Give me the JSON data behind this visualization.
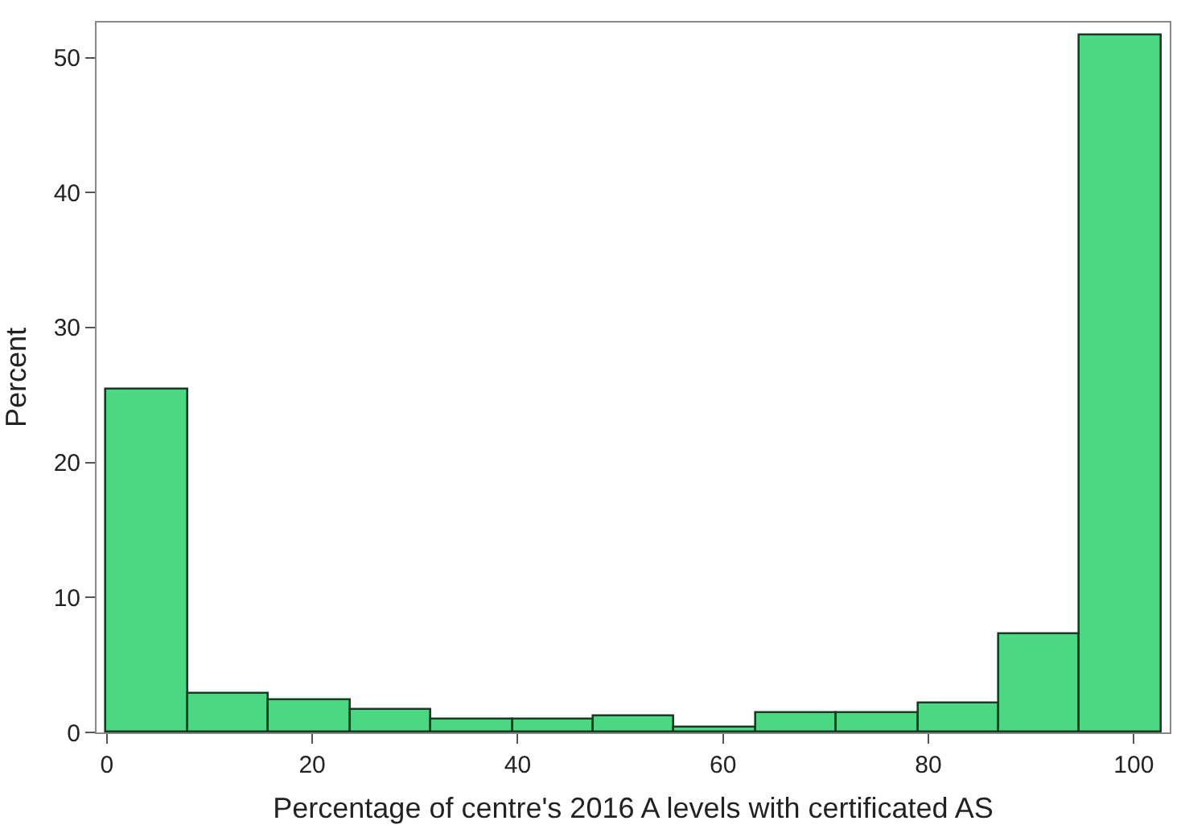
{
  "chart_data": {
    "type": "histogram",
    "xlabel": "Percentage of centre's 2016 A levels with certificated AS",
    "ylabel": "Percent",
    "bins": [
      0,
      7.9,
      15.8,
      23.7,
      31.6,
      39.5,
      47.4,
      55.3,
      63.2,
      71.1,
      79,
      86.9,
      94.8,
      102.7
    ],
    "values": [
      25.4,
      2.9,
      2.4,
      1.7,
      1.0,
      1.0,
      1.2,
      0.4,
      1.4,
      1.4,
      2.1,
      7.3,
      51.6
    ],
    "color": "#4cd882",
    "xlim": [
      -1,
      103.5
    ],
    "ylim": [
      0,
      52.6
    ],
    "xticks": [
      0,
      20,
      40,
      60,
      80,
      100
    ],
    "yticks": [
      0,
      10,
      20,
      30,
      40,
      50
    ]
  }
}
